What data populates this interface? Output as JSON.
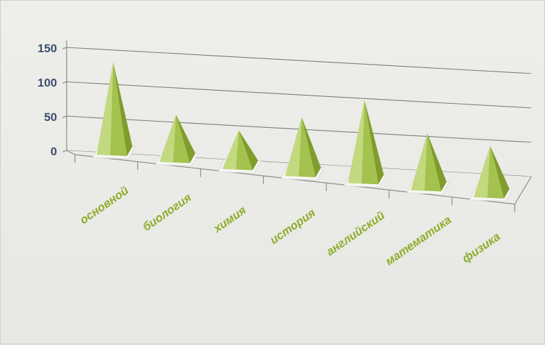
{
  "chart_data": {
    "type": "bar",
    "shape": "pyramid-3d",
    "title": "",
    "xlabel": "",
    "ylabel": "",
    "categories": [
      "основной",
      "биология",
      "химия",
      "история",
      "английский",
      "математика",
      "физика"
    ],
    "values": [
      137,
      70,
      57,
      87,
      123,
      84,
      76
    ],
    "ylim": [
      0,
      150
    ],
    "yticks": [
      "0",
      "50",
      "100",
      "150"
    ],
    "grid": true,
    "legend": "none",
    "colors": {
      "pyramid_light": "#c6dc86",
      "pyramid_mid": "#a3c24e",
      "pyramid_dark": "#7f9c2c",
      "label": "#8cae2a",
      "ytick": "#3b4d6e",
      "grid": "#7a7a76"
    }
  }
}
